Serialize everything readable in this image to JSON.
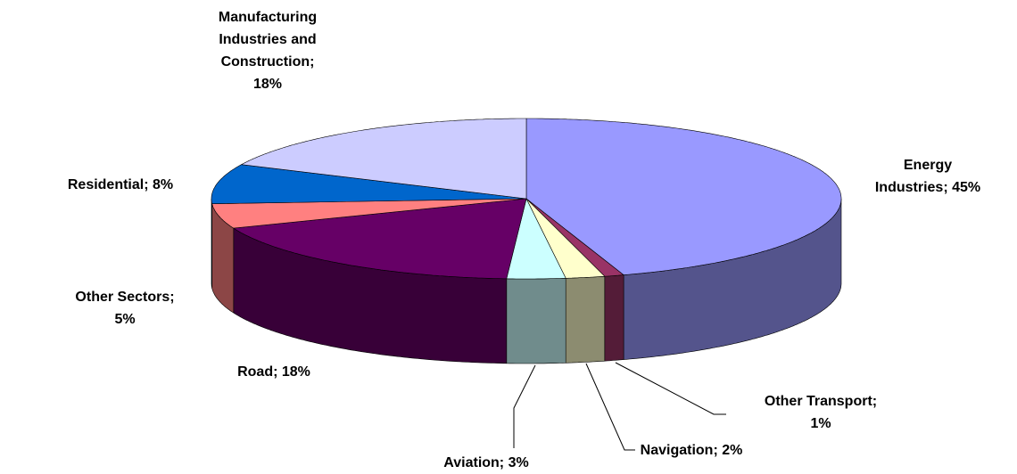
{
  "chart_data": {
    "type": "pie",
    "categories": [
      "Energy Industries; 45%",
      "Other Transport; 1%",
      "Navigation; 2%",
      "Aviation; 3%",
      "Road; 18%",
      "Other Sectors; 5%",
      "Residential; 8%",
      "Manufacturing Industries and Construction; 18%"
    ],
    "values": [
      45,
      1,
      2,
      3,
      18,
      5,
      8,
      18
    ],
    "colors": [
      "#9999ff",
      "#993366",
      "#ffffcc",
      "#ccffff",
      "#660066",
      "#ff8080",
      "#0066cc",
      "#ccccff"
    ]
  }
}
